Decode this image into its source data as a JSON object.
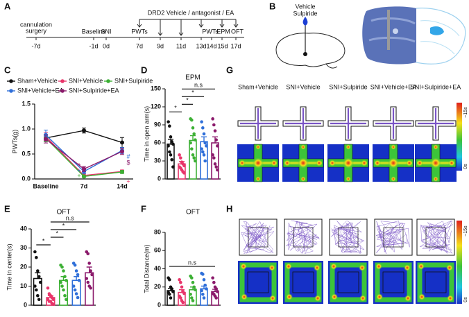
{
  "panel_labels": [
    "A",
    "B",
    "C",
    "D",
    "E",
    "F",
    "G",
    "H"
  ],
  "panel_a": {
    "header": "DRD2 Vehicle / antagonist / EA",
    "events": [
      "cannulation",
      "surgery",
      "Baseline",
      "SNI",
      "PWTs",
      "PWTs",
      "EPM",
      "OFT"
    ],
    "days": [
      "-7d",
      "-1d",
      "0d",
      "7d",
      "9d",
      "11d",
      "13d",
      "14d",
      "15d",
      "17d"
    ]
  },
  "panel_b": {
    "labels": [
      "Vehicle",
      "Sulpiride"
    ]
  },
  "panel_g": {
    "columns": [
      "Sham+Vehicle",
      "SNI+Vehicle",
      "SNI+Sulpiride",
      "SNI+Vehicle+EA",
      "SNI+Sulpiride+EA"
    ],
    "scale": [
      "~15s",
      "0s"
    ]
  },
  "panel_h": {
    "scale": [
      "~15s",
      "0s"
    ]
  },
  "chart_data": [
    {
      "type": "line",
      "y_label": "PWTs(g)",
      "categories": [
        "Baseline",
        "7d",
        "14d"
      ],
      "ylim": [
        0,
        1.5
      ],
      "yticks": [
        {
          "value": 0,
          "label": "0.0"
        },
        0.5,
        {
          "value": 1,
          "label": "1.0"
        },
        1.5
      ],
      "annotations": [
        "#",
        "$",
        "+",
        "+",
        "+",
        "+"
      ],
      "series": [
        {
          "name": "Sham+Vehicle",
          "color": "#111111",
          "values": [
            0.82,
            0.97,
            0.73
          ],
          "errors": [
            0.06,
            0.05,
            0.1
          ]
        },
        {
          "name": "SNI+Vehicle",
          "color": "#e8356a",
          "values": [
            0.85,
            0.07,
            0.15
          ],
          "errors": [
            0.08,
            0.03,
            0.03
          ]
        },
        {
          "name": "SNI+Sulpiride",
          "color": "#3cb034",
          "values": [
            0.82,
            0.05,
            0.14
          ],
          "errors": [
            0.07,
            0.02,
            0.03
          ]
        },
        {
          "name": "SNI+Vehicle+EA",
          "color": "#2f6fd9",
          "values": [
            0.88,
            0.15,
            0.57
          ],
          "errors": [
            0.1,
            0.04,
            0.06
          ]
        },
        {
          "name": "SNI+Sulpiride+EA",
          "color": "#8b1a6b",
          "values": [
            0.8,
            0.2,
            0.55
          ],
          "errors": [
            0.08,
            0.05,
            0.06
          ]
        }
      ]
    },
    {
      "type": "bar",
      "title": "EPM",
      "y_label": "Time in open arm(s)",
      "ylim": [
        0,
        150
      ],
      "yticks": [
        0,
        30,
        60,
        90,
        120,
        150
      ],
      "colors": [
        "#111111",
        "#e8356a",
        "#3cb034",
        "#2f6fd9",
        "#8b1a6b"
      ],
      "values": [
        58,
        25,
        64,
        62,
        60
      ],
      "errors": [
        8,
        4,
        8,
        8,
        10
      ],
      "points": [
        [
          95,
          88,
          70,
          62,
          58,
          55,
          45,
          40,
          32,
          20
        ],
        [
          40,
          35,
          28,
          25,
          22,
          20,
          18,
          15,
          12,
          10
        ],
        [
          100,
          98,
          85,
          75,
          65,
          60,
          50,
          40,
          35,
          30
        ],
        [
          95,
          85,
          75,
          60,
          55,
          50,
          45,
          40,
          30
        ],
        [
          100,
          90,
          80,
          65,
          55,
          40,
          35,
          25,
          20,
          15
        ]
      ],
      "comparisons": [
        {
          "groups": [
            0,
            1
          ],
          "label": "*"
        },
        {
          "groups": [
            1,
            2
          ],
          "label": "*"
        },
        {
          "groups": [
            1,
            3
          ],
          "label": "*"
        },
        {
          "groups": [
            1,
            4
          ],
          "label": "n.s"
        }
      ]
    },
    {
      "type": "bar",
      "title": "OFT",
      "y_label": "Time in center(s)",
      "ylim": [
        0,
        40
      ],
      "yticks": [
        0,
        10,
        20,
        30,
        40
      ],
      "colors": [
        "#111111",
        "#e8356a",
        "#3cb034",
        "#2f6fd9",
        "#8b1a6b"
      ],
      "values": [
        14,
        4,
        13,
        13,
        17
      ],
      "errors": [
        3,
        1,
        2,
        2,
        3
      ],
      "points": [
        [
          28,
          25,
          18,
          15,
          12,
          10,
          8,
          5,
          3
        ],
        [
          9,
          6,
          5,
          4,
          3,
          3,
          2,
          2,
          1,
          0.5
        ],
        [
          21,
          20,
          18,
          15,
          13,
          12,
          10,
          8,
          5,
          3
        ],
        [
          22,
          21,
          18,
          16,
          13,
          10,
          8,
          6,
          4
        ],
        [
          28,
          27,
          22,
          18,
          16,
          14,
          12,
          10,
          9
        ]
      ],
      "comparisons": [
        {
          "groups": [
            0,
            1
          ],
          "label": "*"
        },
        {
          "groups": [
            1,
            2
          ],
          "label": "*"
        },
        {
          "groups": [
            1,
            3
          ],
          "label": "*"
        },
        {
          "groups": [
            1,
            4
          ],
          "label": "n.s"
        }
      ]
    },
    {
      "type": "bar",
      "title": "OFT",
      "y_label": "Total Distance(m)",
      "ylim": [
        0,
        80
      ],
      "yticks": [
        0,
        20,
        40,
        60,
        80
      ],
      "colors": [
        "#111111",
        "#e8356a",
        "#3cb034",
        "#2f6fd9",
        "#8b1a6b"
      ],
      "values": [
        16,
        14,
        17,
        18,
        15
      ],
      "errors": [
        2.5,
        3,
        3,
        3,
        2.5
      ],
      "points": [
        [
          30,
          28,
          20,
          18,
          15,
          14,
          12,
          8
        ],
        [
          28,
          25,
          20,
          15,
          13,
          10,
          8,
          5,
          3
        ],
        [
          32,
          30,
          25,
          20,
          17,
          12,
          8,
          5
        ],
        [
          35,
          34,
          28,
          22,
          18,
          16,
          12,
          8
        ],
        [
          30,
          25,
          20,
          18,
          15,
          13,
          12,
          10,
          8
        ]
      ],
      "comparisons": [
        {
          "groups": [
            0,
            4
          ],
          "label": "n.s"
        }
      ]
    }
  ]
}
